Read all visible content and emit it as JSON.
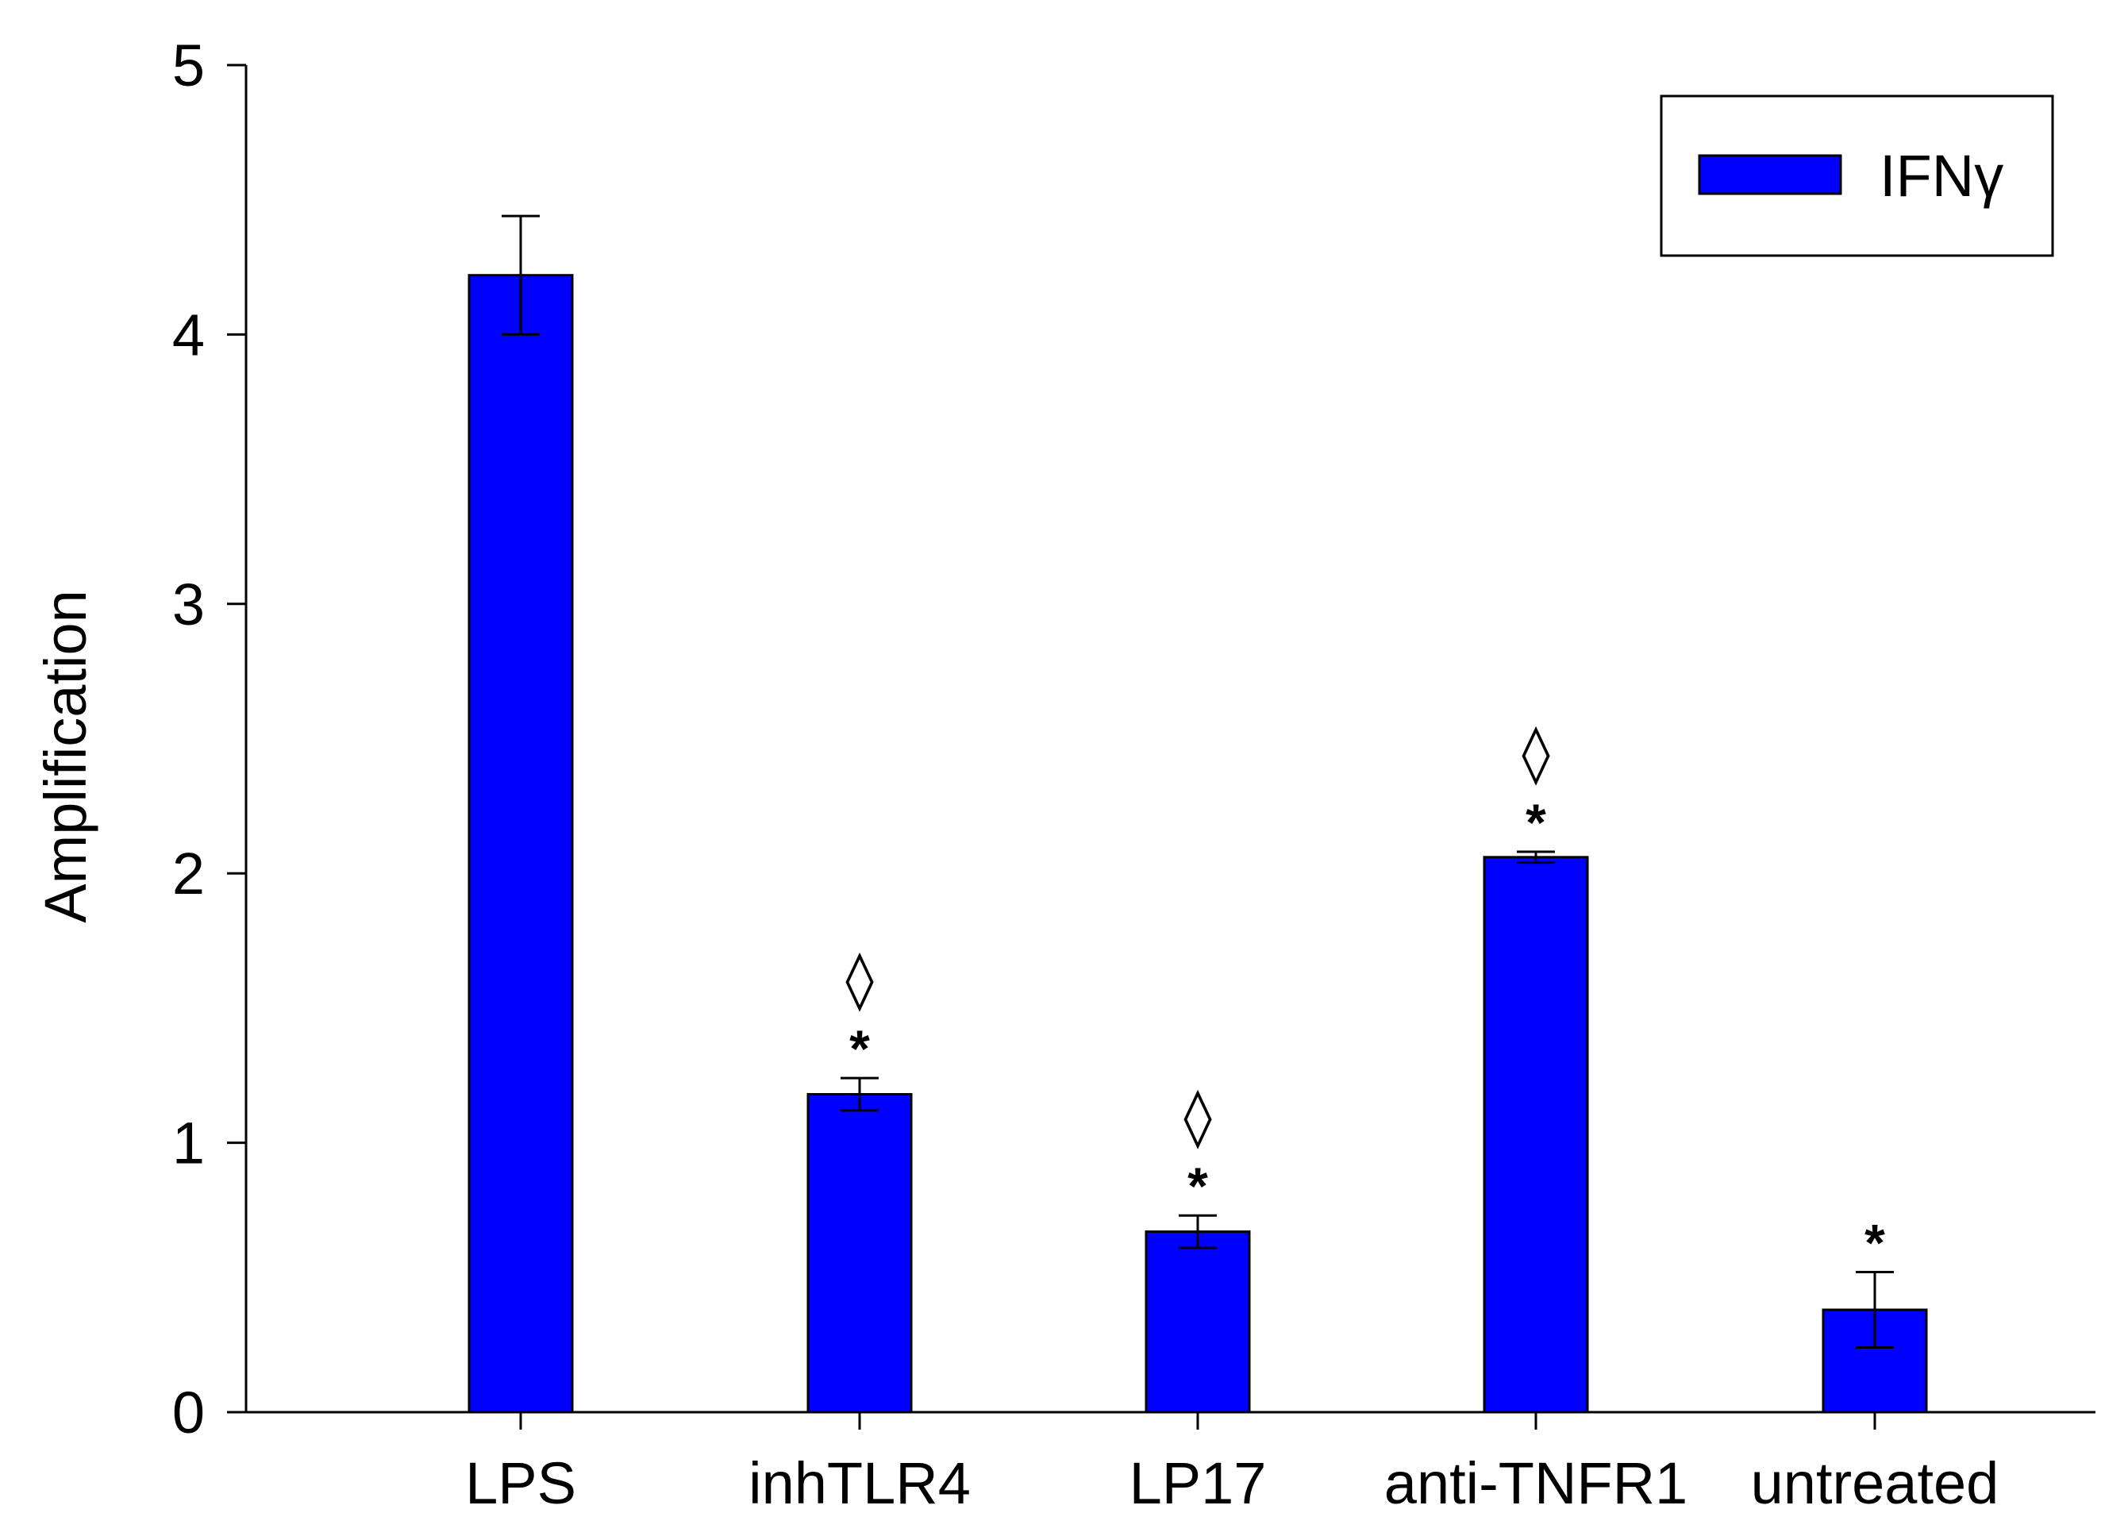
{
  "chart_data": {
    "type": "bar",
    "title": "",
    "xlabel": "",
    "ylabel": "Amplification",
    "ylim": [
      0,
      5
    ],
    "yticks": [
      "0",
      "1",
      "2",
      "3",
      "4",
      "5"
    ],
    "categories": [
      "LPS",
      "inhTLR4",
      "LP17",
      "anti-TNFR1",
      "untreated"
    ],
    "series": [
      {
        "name": "IFNγ",
        "values": [
          4.22,
          1.18,
          0.67,
          2.06,
          0.38
        ],
        "errors": [
          0.22,
          0.06,
          0.06,
          0.02,
          0.14
        ],
        "color": "#0000ff"
      }
    ],
    "annotations": [
      {
        "category": "inhTLR4",
        "star": "*",
        "diamond": "◊"
      },
      {
        "category": "LP17",
        "star": "*",
        "diamond": "◊"
      },
      {
        "category": "anti-TNFR1",
        "star": "*",
        "diamond": "◊"
      },
      {
        "category": "untreated",
        "star": "*",
        "diamond": ""
      }
    ],
    "legend": {
      "position": "top-right",
      "label": "IFNγ"
    },
    "grid": false
  }
}
